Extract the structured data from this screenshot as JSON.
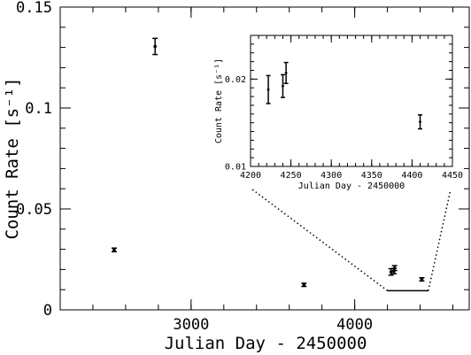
{
  "chart_data": [
    {
      "type": "scatter",
      "xlabel": "Julian Day - 2450000",
      "ylabel": "Count Rate [s⁻¹]",
      "xlim": [
        2200,
        4700
      ],
      "ylim": [
        0,
        0.15
      ],
      "x_ticks": [
        3000,
        4000
      ],
      "x_tick_labels": [
        "3000",
        "4000"
      ],
      "y_ticks": [
        0,
        0.05,
        0.1,
        0.15
      ],
      "y_tick_labels": [
        "0",
        "0.05",
        "0.1",
        "0.15"
      ],
      "points": [
        {
          "x": 2530,
          "y": 0.0297,
          "yerr": 0.0009
        },
        {
          "x": 2780,
          "y": 0.1305,
          "yerr": 0.004
        },
        {
          "x": 3690,
          "y": 0.0124,
          "yerr": 0.0008
        },
        {
          "x": 4222,
          "y": 0.0188,
          "yerr": 0.0016
        },
        {
          "x": 4240,
          "y": 0.0192,
          "yerr": 0.0013
        },
        {
          "x": 4244,
          "y": 0.0207,
          "yerr": 0.0012
        },
        {
          "x": 4410,
          "y": 0.0151,
          "yerr": 0.0008
        }
      ],
      "highlight_range": [
        4200,
        4450
      ],
      "highlight_y": 0.0095
    },
    {
      "type": "scatter",
      "xlabel": "Julian Day - 2450000",
      "ylabel": "Count Rate [s⁻¹]",
      "xlim": [
        4200,
        4450
      ],
      "ylim": [
        0.01,
        0.025
      ],
      "x_ticks": [
        4200,
        4250,
        4300,
        4350,
        4400,
        4450
      ],
      "x_tick_labels": [
        "4200",
        "4250",
        "4300",
        "4350",
        "4400",
        "4450"
      ],
      "y_ticks": [
        0.01,
        0.02
      ],
      "y_tick_labels": [
        "0.01",
        "0.02"
      ],
      "points": [
        {
          "x": 4222,
          "y": 0.0188,
          "yerr": 0.0016
        },
        {
          "x": 4240,
          "y": 0.0192,
          "yerr": 0.0013
        },
        {
          "x": 4244,
          "y": 0.0207,
          "yerr": 0.0012
        },
        {
          "x": 4410,
          "y": 0.0151,
          "yerr": 0.0008
        }
      ]
    }
  ]
}
